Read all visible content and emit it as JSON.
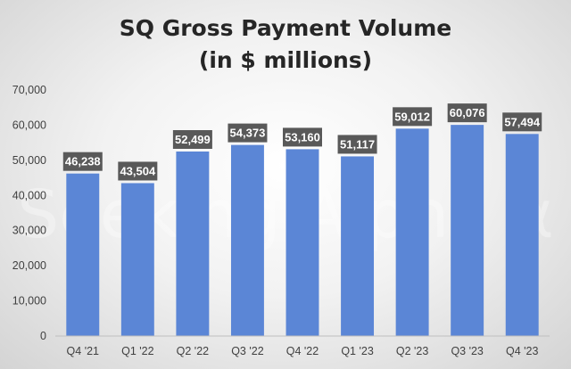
{
  "chart_data": {
    "type": "bar",
    "title": [
      "SQ Gross Payment Volume",
      "(in $ millions)"
    ],
    "categories": [
      "Q4 '21",
      "Q1 '22",
      "Q2 '22",
      "Q3 '22",
      "Q4 '22",
      "Q1 '23",
      "Q2 '23",
      "Q3 '23",
      "Q4 '23"
    ],
    "values": [
      46238,
      43504,
      52499,
      54373,
      53160,
      51117,
      59012,
      60076,
      57494
    ],
    "data_labels": [
      "46,238",
      "43,504",
      "52,499",
      "54,373",
      "53,160",
      "51,117",
      "59,012",
      "60,076",
      "57,494"
    ],
    "ylim": [
      0,
      70000
    ],
    "yticks": [
      "0",
      "10,000",
      "20,000",
      "30,000",
      "40,000",
      "50,000",
      "60,000",
      "70,000"
    ],
    "grid": false,
    "legend": "none",
    "colors": {
      "bar": "#5b86d6",
      "label_bg": "#595959"
    },
    "watermark": "Seeking Alpha α"
  }
}
